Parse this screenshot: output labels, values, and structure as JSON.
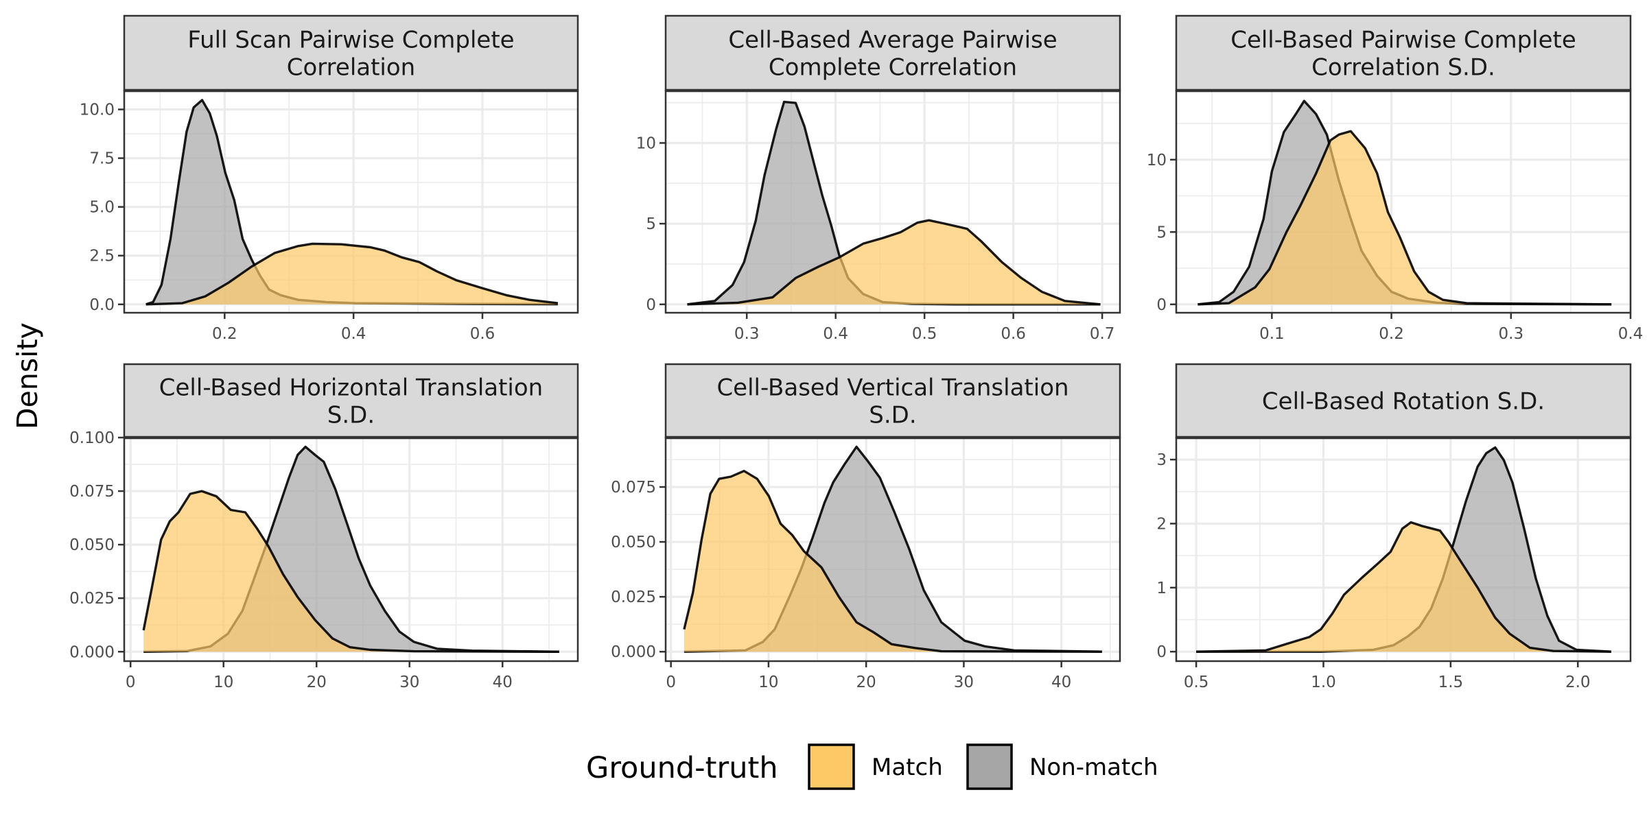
{
  "chart_data": {
    "type": "area",
    "subtype": "density-facets",
    "ylabel": "Density",
    "xlabel": "",
    "legend": {
      "title": "Ground-truth",
      "position": "bottom",
      "entries": [
        {
          "name": "Match",
          "color": "#FDC967"
        },
        {
          "name": "Non-match",
          "color": "#A6A6A6"
        }
      ]
    },
    "colors": {
      "match_fill": "#FDC967",
      "nonmatch_fill": "#A6A6A6",
      "outline": "#000000",
      "strip_bg": "#D9D9D9",
      "panel_border": "#333333",
      "grid": "#EBEBEB"
    },
    "panels": [
      {
        "title_lines": [
          "Full Scan Pairwise Complete",
          "Correlation"
        ],
        "xlim": [
          0.0442,
          0.748
        ],
        "ylim": [
          -0.43,
          10.97
        ],
        "xticks": [
          0.2,
          0.4,
          0.6
        ],
        "xtick_labels": [
          "0.2",
          "0.4",
          "0.6"
        ],
        "yticks": [
          0,
          2.5,
          5,
          7.5,
          10
        ],
        "ytick_labels": [
          "0.0",
          "2.5",
          "5.0",
          "7.5",
          "10.0"
        ],
        "series": [
          {
            "name": "Non-match",
            "x": [
              0.078,
              0.089,
              0.102,
              0.116,
              0.129,
              0.141,
              0.152,
              0.165,
              0.177,
              0.188,
              0.201,
              0.215,
              0.228,
              0.242,
              0.255,
              0.269,
              0.287,
              0.314,
              0.358,
              0.403,
              0.493,
              0.583,
              0.717
            ],
            "y": [
              0,
              0.12,
              1.0,
              3.35,
              6.28,
              8.86,
              10.1,
              10.48,
              9.8,
              8.63,
              6.75,
              5.34,
              3.35,
              2.29,
              1.47,
              0.76,
              0.47,
              0.23,
              0.12,
              0.06,
              0.04,
              0.02,
              0.01
            ]
          },
          {
            "name": "Match",
            "x": [
              0.078,
              0.134,
              0.17,
              0.206,
              0.242,
              0.278,
              0.314,
              0.336,
              0.381,
              0.426,
              0.448,
              0.475,
              0.502,
              0.529,
              0.56,
              0.601,
              0.637,
              0.673,
              0.717
            ],
            "y": [
              0,
              0.06,
              0.41,
              1.11,
              1.94,
              2.64,
              2.99,
              3.11,
              3.08,
              2.93,
              2.76,
              2.41,
              2.17,
              1.7,
              1.23,
              0.82,
              0.47,
              0.23,
              0.06
            ]
          }
        ]
      },
      {
        "title_lines": [
          "Cell-Based Average Pairwise",
          "Complete Correlation"
        ],
        "xlim": [
          0.2087,
          0.72
        ],
        "ylim": [
          -0.52,
          13.25
        ],
        "xticks": [
          0.3,
          0.4,
          0.5,
          0.6,
          0.7
        ],
        "xtick_labels": [
          "0.3",
          "0.4",
          "0.5",
          "0.6",
          "0.7"
        ],
        "yticks": [
          0,
          5,
          10
        ],
        "ytick_labels": [
          "0",
          "5",
          "10"
        ],
        "series": [
          {
            "name": "Non-match",
            "x": [
              0.233,
              0.264,
              0.284,
              0.297,
              0.31,
              0.32,
              0.333,
              0.342,
              0.355,
              0.365,
              0.375,
              0.385,
              0.395,
              0.404,
              0.414,
              0.431,
              0.453,
              0.486,
              0.535,
              0.698
            ],
            "y": [
              0,
              0.21,
              1.2,
              2.62,
              5.18,
              8.01,
              10.85,
              12.55,
              12.48,
              11.0,
              8.87,
              6.74,
              4.9,
              3.05,
              1.63,
              0.64,
              0.14,
              0.03,
              0,
              0
            ]
          },
          {
            "name": "Match",
            "x": [
              0.233,
              0.29,
              0.329,
              0.355,
              0.381,
              0.404,
              0.431,
              0.453,
              0.473,
              0.492,
              0.505,
              0.522,
              0.548,
              0.564,
              0.587,
              0.609,
              0.632,
              0.658,
              0.698
            ],
            "y": [
              0,
              0.1,
              0.43,
              1.63,
              2.34,
              2.91,
              3.76,
              4.11,
              4.47,
              5.06,
              5.21,
              5.01,
              4.68,
              3.9,
              2.62,
              1.63,
              0.78,
              0.21,
              0
            ]
          }
        ]
      },
      {
        "title_lines": [
          "Cell-Based Pairwise Complete",
          "Correlation S.D."
        ],
        "xlim": [
          0.02,
          0.4
        ],
        "ylim": [
          -0.58,
          14.78
        ],
        "xticks": [
          0.1,
          0.2,
          0.3,
          0.4
        ],
        "xtick_labels": [
          "0.1",
          "0.2",
          "0.3",
          "0.4"
        ],
        "yticks": [
          0,
          5,
          10
        ],
        "ytick_labels": [
          "0",
          "5",
          "10"
        ],
        "series": [
          {
            "name": "Non-match",
            "x": [
              0.038,
              0.056,
              0.068,
              0.081,
              0.093,
              0.1,
              0.11,
              0.12,
              0.127,
              0.137,
              0.146,
              0.156,
              0.166,
              0.175,
              0.188,
              0.2,
              0.214,
              0.238,
              0.263,
              0.384
            ],
            "y": [
              0,
              0.16,
              0.87,
              2.6,
              5.9,
              9.2,
              11.9,
              13.15,
              14.06,
              13.15,
              11.73,
              8.58,
              5.91,
              3.7,
              1.97,
              0.87,
              0.39,
              0.11,
              0.03,
              0
            ]
          },
          {
            "name": "Match",
            "x": [
              0.038,
              0.064,
              0.086,
              0.098,
              0.112,
              0.124,
              0.137,
              0.149,
              0.156,
              0.166,
              0.178,
              0.188,
              0.197,
              0.207,
              0.219,
              0.231,
              0.243,
              0.263,
              0.384
            ],
            "y": [
              0,
              0.08,
              1.18,
              2.44,
              4.96,
              6.85,
              9.06,
              11.34,
              11.73,
              11.97,
              10.79,
              9.06,
              6.38,
              4.65,
              2.28,
              0.87,
              0.31,
              0.08,
              0
            ]
          }
        ]
      },
      {
        "title_lines": [
          "Cell-Based Horizontal Translation",
          "S.D."
        ],
        "xlim": [
          -0.68,
          48.1
        ],
        "ylim": [
          -0.0044,
          0.1
        ],
        "xticks": [
          0,
          10,
          20,
          30,
          40
        ],
        "xtick_labels": [
          "0",
          "10",
          "20",
          "30",
          "40"
        ],
        "yticks": [
          0,
          0.025,
          0.05,
          0.075,
          0.1
        ],
        "ytick_labels": [
          "0.000",
          "0.025",
          "0.050",
          "0.075",
          "0.100"
        ],
        "series": [
          {
            "name": "Non-match",
            "x": [
              1.4,
              6.09,
              8.59,
              10.47,
              12.03,
              13.28,
              14.53,
              15.78,
              17.03,
              17.97,
              18.81,
              19.84,
              20.78,
              22.03,
              23.28,
              24.53,
              25.78,
              27.34,
              28.91,
              30.47,
              32.97,
              36.72,
              46.09
            ],
            "y": [
              0,
              0.0003,
              0.0025,
              0.0084,
              0.0191,
              0.0341,
              0.0491,
              0.0651,
              0.0812,
              0.0919,
              0.0957,
              0.0919,
              0.0887,
              0.0759,
              0.0598,
              0.0437,
              0.0309,
              0.0191,
              0.0094,
              0.0046,
              0.0014,
              0.0005,
              0
            ]
          },
          {
            "name": "Match",
            "x": [
              1.4,
              2.34,
              3.28,
              4.22,
              5.16,
              6.41,
              7.66,
              9.22,
              10.78,
              12.34,
              13.59,
              14.84,
              16.4,
              17.97,
              19.84,
              21.72,
              23.59,
              25.78,
              30.47,
              46.09
            ],
            "y": [
              0.01,
              0.0309,
              0.0523,
              0.0609,
              0.0651,
              0.0737,
              0.075,
              0.0726,
              0.0662,
              0.0651,
              0.0576,
              0.0491,
              0.0362,
              0.0255,
              0.0148,
              0.0062,
              0.0021,
              0.0009,
              0.0002,
              0
            ]
          }
        ]
      },
      {
        "title_lines": [
          "Cell-Based Vertical Translation",
          "S.D."
        ],
        "xlim": [
          -0.54,
          46.0
        ],
        "ylim": [
          -0.0043,
          0.0975
        ],
        "xticks": [
          0,
          10,
          20,
          30,
          40
        ],
        "xtick_labels": [
          "0",
          "10",
          "20",
          "30",
          "40"
        ],
        "yticks": [
          0,
          0.025,
          0.05,
          0.075
        ],
        "ytick_labels": [
          "0.000",
          "0.025",
          "0.050",
          "0.075"
        ],
        "series": [
          {
            "name": "Non-match",
            "x": [
              1.35,
              7.63,
              9.43,
              10.63,
              12.13,
              13.32,
              14.52,
              15.72,
              16.62,
              17.81,
              19.01,
              20.21,
              21.41,
              22.9,
              24.4,
              25.9,
              27.7,
              30.09,
              32.19,
              35.18,
              44.16
            ],
            "y": [
              0,
              0.0006,
              0.0045,
              0.0102,
              0.0249,
              0.0374,
              0.052,
              0.0677,
              0.0771,
              0.0855,
              0.0933,
              0.0865,
              0.0792,
              0.0635,
              0.0468,
              0.028,
              0.0134,
              0.005,
              0.0024,
              0.0006,
              0
            ]
          },
          {
            "name": "Match",
            "x": [
              1.35,
              2.25,
              3.14,
              4.04,
              4.94,
              6.14,
              7.49,
              8.83,
              10.03,
              11.23,
              12.43,
              13.62,
              15.42,
              17.22,
              19.01,
              20.81,
              22.6,
              25.0,
              27.7,
              44.16
            ],
            "y": [
              0.0102,
              0.0269,
              0.051,
              0.0719,
              0.0787,
              0.0797,
              0.0823,
              0.0787,
              0.0708,
              0.0583,
              0.0531,
              0.0458,
              0.0384,
              0.0249,
              0.0134,
              0.0087,
              0.0034,
              0.0017,
              0.0002,
              0
            ]
          }
        ]
      },
      {
        "title_lines": [
          "Cell-Based Rotation S.D."
        ],
        "xlim": [
          0.4215,
          2.207
        ],
        "ylim": [
          -0.148,
          3.344
        ],
        "xticks": [
          0.5,
          1.0,
          1.5,
          2.0
        ],
        "xtick_labels": [
          "0.5",
          "1.0",
          "1.5",
          "2.0"
        ],
        "yticks": [
          0,
          1,
          2,
          3
        ],
        "ytick_labels": [
          "0",
          "1",
          "2",
          "3"
        ],
        "series": [
          {
            "name": "Non-match",
            "x": [
              0.5,
              0.99,
              1.196,
              1.275,
              1.332,
              1.378,
              1.423,
              1.469,
              1.515,
              1.56,
              1.606,
              1.64,
              1.675,
              1.709,
              1.743,
              1.789,
              1.835,
              1.88,
              1.926,
              1.994,
              2.131
            ],
            "y": [
              0,
              0,
              0.03,
              0.1,
              0.24,
              0.39,
              0.67,
              1.14,
              1.74,
              2.35,
              2.89,
              3.1,
              3.19,
              2.99,
              2.64,
              1.92,
              1.14,
              0.56,
              0.17,
              0.03,
              0
            ]
          },
          {
            "name": "Match",
            "x": [
              0.5,
              0.774,
              0.854,
              0.945,
              0.99,
              1.036,
              1.081,
              1.15,
              1.218,
              1.264,
              1.31,
              1.344,
              1.39,
              1.458,
              1.492,
              1.527,
              1.606,
              1.675,
              1.732,
              1.812,
              1.903,
              2.131
            ],
            "y": [
              0,
              0.02,
              0.12,
              0.23,
              0.35,
              0.6,
              0.89,
              1.15,
              1.39,
              1.56,
              1.92,
              2.02,
              1.96,
              1.89,
              1.71,
              1.49,
              1.0,
              0.53,
              0.28,
              0.06,
              0.01,
              0
            ]
          }
        ]
      }
    ]
  }
}
